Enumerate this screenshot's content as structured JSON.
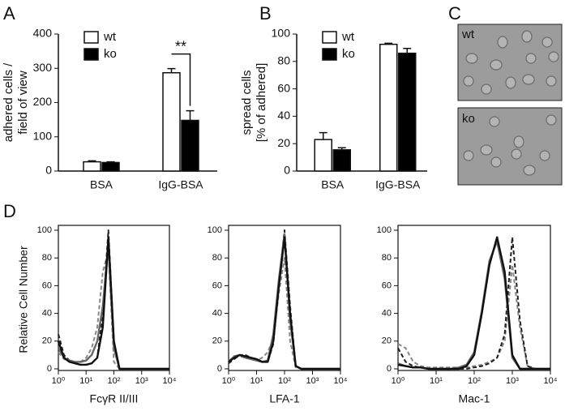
{
  "chart_data": [
    {
      "type": "bar",
      "panel_label": "A",
      "categories": [
        "BSA",
        "IgG-BSA"
      ],
      "series": [
        {
          "name": "wt",
          "color": "#ffffff",
          "values": [
            27,
            287
          ],
          "errors": [
            3,
            12
          ]
        },
        {
          "name": "ko",
          "color": "#000000",
          "values": [
            25,
            148
          ],
          "errors": [
            2,
            28
          ]
        }
      ],
      "ylabel": [
        "adhered cells /",
        "field of view"
      ],
      "ylim": [
        0,
        400
      ],
      "yticks": [
        0,
        100,
        200,
        300,
        400
      ],
      "legend": "top-left",
      "annotations": [
        "**"
      ]
    },
    {
      "type": "bar",
      "panel_label": "B",
      "categories": [
        "BSA",
        "IgG-BSA"
      ],
      "series": [
        {
          "name": "wt",
          "color": "#ffffff",
          "values": [
            23,
            92.5
          ],
          "errors": [
            5,
            0.8
          ]
        },
        {
          "name": "ko",
          "color": "#000000",
          "values": [
            15.5,
            86
          ],
          "errors": [
            1.5,
            3.5
          ]
        }
      ],
      "ylabel": [
        "spread cells",
        "[% of adhered]"
      ],
      "ylim": [
        0,
        100
      ],
      "yticks": [
        0,
        20,
        40,
        60,
        80,
        100
      ],
      "legend": "top-left"
    },
    {
      "type": "line",
      "panel_label": "D",
      "xscale": "log",
      "xlabel": "FcγR II/III",
      "ylabel": "Relative Cell Number",
      "x": [
        1,
        1.585,
        2.512,
        3.981,
        6.31,
        10,
        15.85,
        25.12,
        39.81,
        63.1,
        100,
        158.5,
        251.2,
        398.1,
        631,
        1000,
        1585,
        2512,
        3981,
        6310,
        10000
      ],
      "xlim": [
        1,
        10000
      ],
      "xticks": [
        {
          "value": 1,
          "label": "10⁰"
        },
        {
          "value": 10,
          "label": "10¹"
        },
        {
          "value": 100,
          "label": "10²"
        },
        {
          "value": 1000,
          "label": "10³"
        },
        {
          "value": 10000,
          "label": "10⁴"
        }
      ],
      "ylim": [
        0,
        100
      ],
      "yticks": [
        0,
        20,
        40,
        60,
        80,
        100
      ],
      "series": [
        {
          "color": "#888888",
          "linestyle": "dashed",
          "values": [
            12,
            7,
            5,
            4,
            5,
            8,
            15,
            30,
            70,
            85,
            5,
            0,
            0,
            0,
            0,
            0,
            0,
            0,
            0,
            0,
            0
          ]
        },
        {
          "color": "#222222",
          "linestyle": "dashed",
          "values": [
            25,
            10,
            6,
            4,
            3,
            3,
            4,
            8,
            40,
            100,
            20,
            0,
            0,
            0,
            0,
            0,
            0,
            0,
            0,
            0,
            0
          ]
        },
        {
          "color": "#666666",
          "linestyle": "solid",
          "values": [
            15,
            8,
            6,
            5,
            5,
            6,
            10,
            20,
            45,
            90,
            15,
            0,
            0,
            0,
            0,
            0,
            0,
            0,
            0,
            0,
            0
          ]
        },
        {
          "color": "#111111",
          "linestyle": "solid",
          "values": [
            20,
            8,
            5,
            4,
            3,
            3,
            4,
            8,
            30,
            95,
            20,
            0,
            0,
            0,
            0,
            0,
            0,
            0,
            0,
            0,
            0
          ]
        }
      ]
    },
    {
      "type": "line",
      "xscale": "log",
      "xlabel": "LFA-1",
      "x": [
        1,
        1.585,
        2.512,
        3.981,
        6.31,
        10,
        15.85,
        25.12,
        39.81,
        63.1,
        100,
        158.5,
        251.2,
        398.1,
        631,
        1000,
        1585,
        2512,
        3981,
        6310,
        10000
      ],
      "xlim": [
        1,
        10000
      ],
      "xticks": [
        {
          "value": 1,
          "label": "10⁰"
        },
        {
          "value": 10,
          "label": "10¹"
        },
        {
          "value": 100,
          "label": "10²"
        },
        {
          "value": 1000,
          "label": "10³"
        },
        {
          "value": 10000,
          "label": "10⁴"
        }
      ],
      "ylim": [
        0,
        100
      ],
      "yticks": [
        0,
        20,
        40,
        60,
        80,
        100
      ],
      "series": [
        {
          "color": "#888888",
          "linestyle": "dashed",
          "values": [
            6,
            8,
            9,
            8,
            7,
            6,
            8,
            12,
            22,
            55,
            80,
            20,
            1,
            0,
            0,
            0,
            0,
            0,
            0,
            0,
            0
          ]
        },
        {
          "color": "#222222",
          "linestyle": "dashed",
          "values": [
            4,
            7,
            10,
            10,
            8,
            7,
            5,
            5,
            18,
            62,
            100,
            45,
            2,
            0,
            0,
            0,
            0,
            0,
            0,
            0,
            0
          ]
        },
        {
          "color": "#666666",
          "linestyle": "solid",
          "values": [
            5,
            9,
            10,
            8,
            7,
            6,
            5,
            6,
            25,
            65,
            97,
            35,
            2,
            0,
            0,
            0,
            0,
            0,
            0,
            0,
            0
          ]
        },
        {
          "color": "#111111",
          "linestyle": "solid",
          "values": [
            5,
            8,
            10,
            9,
            8,
            7,
            5,
            5,
            20,
            60,
            95,
            40,
            2,
            0,
            0,
            0,
            0,
            0,
            0,
            0,
            0
          ]
        }
      ]
    },
    {
      "type": "line",
      "xscale": "log",
      "xlabel": "Mac-1",
      "x": [
        1,
        1.585,
        2.512,
        3.981,
        6.31,
        10,
        15.85,
        25.12,
        39.81,
        63.1,
        100,
        158.5,
        251.2,
        398.1,
        631,
        1000,
        1585,
        2512,
        3981,
        6310,
        10000
      ],
      "xlim": [
        1,
        10000
      ],
      "xticks": [
        {
          "value": 1,
          "label": "10⁰"
        },
        {
          "value": 10,
          "label": "10¹"
        },
        {
          "value": 100,
          "label": "10²"
        },
        {
          "value": 1000,
          "label": "10³"
        },
        {
          "value": 10000,
          "label": "10⁴"
        }
      ],
      "ylim": [
        0,
        100
      ],
      "yticks": [
        0,
        20,
        40,
        60,
        80,
        100
      ],
      "series": [
        {
          "color": "#888888",
          "linestyle": "dashed",
          "values": [
            18,
            15,
            5,
            2,
            1,
            1,
            1,
            1,
            1,
            1,
            2,
            3,
            5,
            8,
            20,
            75,
            30,
            2,
            0,
            0,
            0
          ]
        },
        {
          "color": "#222222",
          "linestyle": "dashed",
          "values": [
            15,
            5,
            2,
            1,
            0,
            0,
            0,
            0,
            0,
            0,
            1,
            2,
            4,
            8,
            25,
            95,
            35,
            2,
            0,
            0,
            0
          ]
        },
        {
          "color": "#666666",
          "linestyle": "solid",
          "values": [
            4,
            2,
            1,
            1,
            0,
            0,
            0,
            0,
            1,
            3,
            12,
            42,
            78,
            92,
            65,
            8,
            0,
            0,
            0,
            0,
            0
          ]
        },
        {
          "color": "#111111",
          "linestyle": "solid",
          "values": [
            3,
            2,
            1,
            1,
            0,
            0,
            0,
            0,
            0,
            2,
            10,
            40,
            75,
            95,
            70,
            10,
            0,
            0,
            0,
            0,
            0
          ]
        }
      ]
    }
  ],
  "panel_c": {
    "panel_label": "C",
    "images": [
      {
        "label": "wt"
      },
      {
        "label": "ko"
      }
    ]
  }
}
